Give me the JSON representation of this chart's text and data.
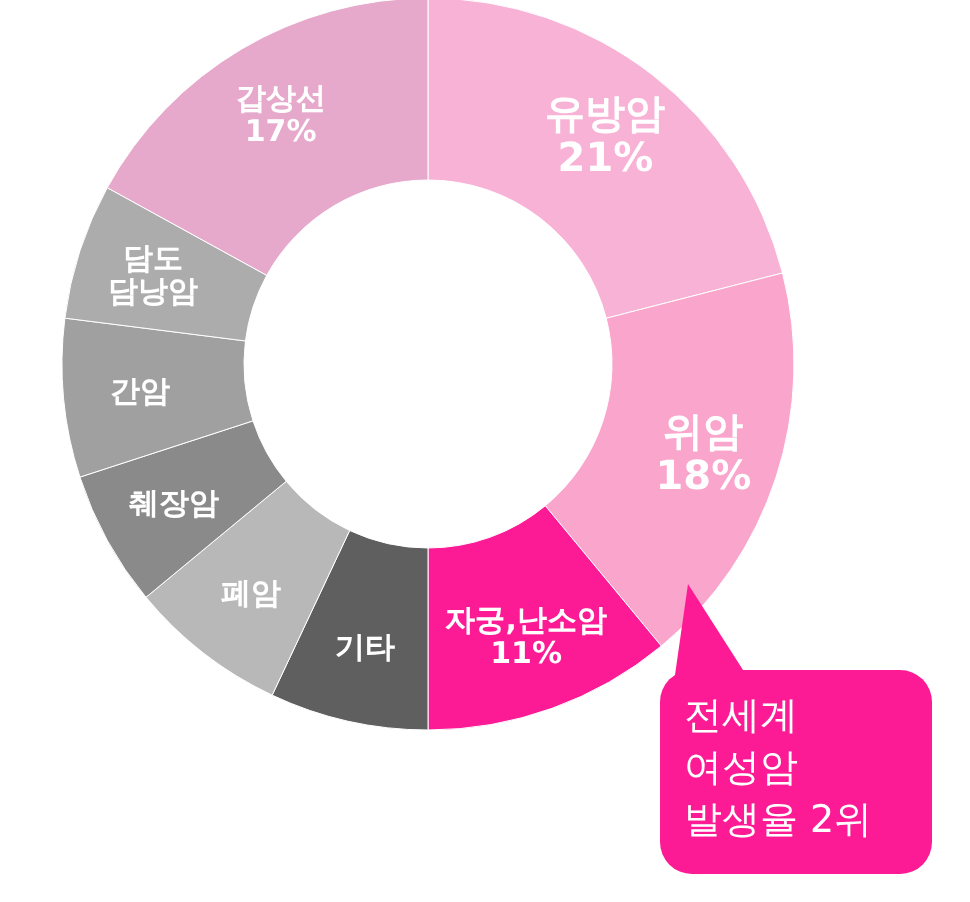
{
  "chart_data": {
    "type": "donut",
    "categories": [
      "유방암",
      "위암",
      "자궁,난소암",
      "기타",
      "폐암",
      "췌장암",
      "간암",
      "담도\n담낭암",
      "갑상선"
    ],
    "values": [
      21,
      18,
      11,
      7,
      7,
      6,
      7,
      6,
      17
    ],
    "value_labels": [
      "21%",
      "18%",
      "11%",
      null,
      null,
      null,
      null,
      null,
      "17%"
    ],
    "colors": [
      "#f8b2d6",
      "#f9a5cc",
      "#fc1b95",
      "#5f5f5f",
      "#b8b8b8",
      "#8a8a8a",
      "#a0a0a0",
      "#acacac",
      "#e6a9cb"
    ],
    "annotations": [
      "전세계\n여성암\n발생율 2위"
    ]
  }
}
